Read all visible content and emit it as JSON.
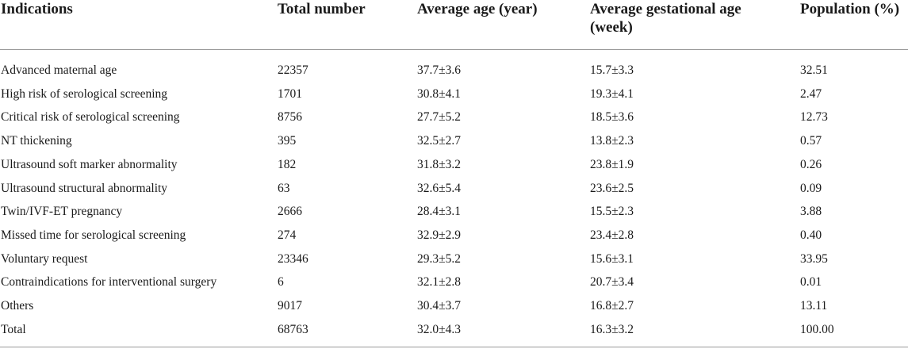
{
  "table": {
    "headers": [
      "Indications",
      "Total number",
      "Average age (year)",
      "Average gestational age (week)",
      "Population (%)"
    ],
    "rows": [
      [
        "Advanced maternal age",
        "22357",
        "37.7±3.6",
        "15.7±3.3",
        "32.51"
      ],
      [
        "High risk of serological screening",
        "1701",
        "30.8±4.1",
        "19.3±4.1",
        "2.47"
      ],
      [
        "Critical risk of serological screening",
        "8756",
        "27.7±5.2",
        "18.5±3.6",
        "12.73"
      ],
      [
        "NT thickening",
        "395",
        "32.5±2.7",
        "13.8±2.3",
        "0.57"
      ],
      [
        "Ultrasound soft marker abnormality",
        "182",
        "31.8±3.2",
        "23.8±1.9",
        "0.26"
      ],
      [
        "Ultrasound structural abnormality",
        "63",
        "32.6±5.4",
        "23.6±2.5",
        "0.09"
      ],
      [
        "Twin/IVF-ET pregnancy",
        "2666",
        "28.4±3.1",
        "15.5±2.3",
        "3.88"
      ],
      [
        "Missed time for serological screening",
        "274",
        "32.9±2.9",
        "23.4±2.8",
        "0.40"
      ],
      [
        "Voluntary request",
        "23346",
        "29.3±5.2",
        "15.6±3.1",
        "33.95"
      ],
      [
        "Contraindications for interventional surgery",
        "6",
        "32.1±2.8",
        "20.7±3.4",
        "0.01"
      ],
      [
        "Others",
        "9017",
        "30.4±3.7",
        "16.8±2.7",
        "13.11"
      ],
      [
        "Total",
        "68763",
        "32.0±4.3",
        "16.3±3.2",
        "100.00"
      ]
    ]
  }
}
